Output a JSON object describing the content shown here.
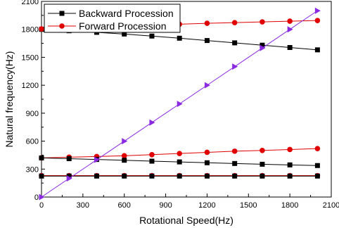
{
  "chart_data": {
    "type": "line",
    "title": "",
    "xlabel": "Rotational Speed(Hz)",
    "ylabel": "Natural frequency(Hz)",
    "xlim": [
      0,
      2100
    ],
    "ylim": [
      0,
      2100
    ],
    "x_ticks": [
      0,
      300,
      600,
      900,
      1200,
      1500,
      1800,
      2100
    ],
    "y_ticks": [
      0,
      300,
      600,
      900,
      1200,
      1500,
      1800,
      2100
    ],
    "grid": false,
    "legend_position": "top-left",
    "series": [
      {
        "name": "Backward Procession",
        "color": "#000000",
        "marker": "square",
        "x": [
          0,
          200,
          400,
          600,
          800,
          1000,
          1200,
          1400,
          1600,
          1800,
          2000
        ],
        "y": [
          1800,
          1785,
          1768,
          1750,
          1728,
          1705,
          1680,
          1655,
          1630,
          1605,
          1580
        ]
      },
      {
        "name": "Forward Procession",
        "color": "#e00000",
        "marker": "circle",
        "x": [
          0,
          200,
          400,
          600,
          800,
          1000,
          1200,
          1400,
          1600,
          1800,
          2000
        ],
        "y": [
          1805,
          1815,
          1825,
          1835,
          1845,
          1855,
          1865,
          1872,
          1880,
          1888,
          1895
        ]
      },
      {
        "color": "#e00000",
        "marker": "circle",
        "x": [
          0,
          200,
          400,
          600,
          800,
          1000,
          1200,
          1400,
          1600,
          1800,
          2000
        ],
        "y": [
          420,
          428,
          435,
          443,
          455,
          467,
          480,
          492,
          500,
          510,
          520
        ]
      },
      {
        "color": "#000000",
        "marker": "square",
        "x": [
          0,
          200,
          400,
          600,
          800,
          1000,
          1200,
          1400,
          1600,
          1800,
          2000
        ],
        "y": [
          420,
          412,
          403,
          395,
          385,
          377,
          368,
          360,
          352,
          345,
          338
        ]
      },
      {
        "color": "#e00000",
        "marker": "circle",
        "x": [
          0,
          200,
          400,
          600,
          800,
          1000,
          1200,
          1400,
          1600,
          1800,
          2000
        ],
        "y": [
          230,
          230,
          230,
          230,
          230,
          230,
          230,
          230,
          230,
          230,
          230
        ]
      },
      {
        "color": "#000000",
        "marker": "square",
        "x": [
          0,
          200,
          400,
          600,
          800,
          1000,
          1200,
          1400,
          1600,
          1800,
          2000
        ],
        "y": [
          225,
          225,
          225,
          225,
          225,
          225,
          225,
          225,
          225,
          225,
          225
        ]
      },
      {
        "color": "#8a2be2",
        "marker": "triangle-right",
        "x": [
          0,
          200,
          400,
          600,
          800,
          1000,
          1200,
          1400,
          1600,
          1800,
          2000
        ],
        "y": [
          0,
          200,
          400,
          600,
          800,
          1000,
          1200,
          1400,
          1600,
          1800,
          2000
        ]
      }
    ]
  }
}
